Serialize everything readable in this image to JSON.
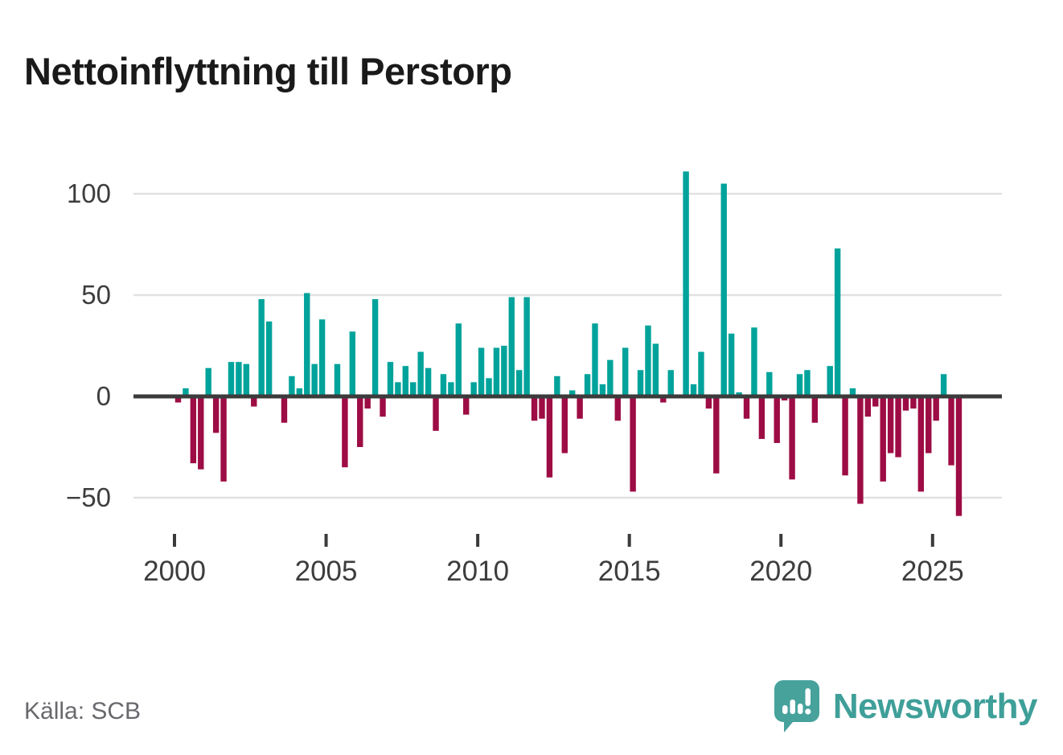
{
  "header": {
    "title": "Nettoinflyttning till Perstorp"
  },
  "footer": {
    "source": "Källa: SCB",
    "brand": "Newsworthy"
  },
  "colors": {
    "positive": "#00a39b",
    "negative": "#9d0c44",
    "brand_teal": "#47a29c",
    "axis_dark": "#3b3b3b",
    "gridline": "#e1e1e1",
    "tick_label": "#3d3d3d"
  },
  "chart_data": {
    "type": "bar",
    "title": "Nettoinflyttning till Perstorp",
    "source": "Källa: SCB",
    "frequency": "quarterly",
    "xlabel": "",
    "ylabel": "",
    "ylim": [
      -65,
      115
    ],
    "grid": true,
    "x_tick_labels": [
      "2000",
      "2005",
      "2010",
      "2015",
      "2020",
      "2025"
    ],
    "y_ticks": [
      {
        "label": "100",
        "value": 100
      },
      {
        "label": "50",
        "value": 50
      },
      {
        "label": "0",
        "value": 0
      },
      {
        "label": "−50",
        "value": -50
      }
    ],
    "categories": [
      "2000-Q1",
      "2000-Q2",
      "2000-Q3",
      "2000-Q4",
      "2001-Q1",
      "2001-Q2",
      "2001-Q3",
      "2001-Q4",
      "2002-Q1",
      "2002-Q2",
      "2002-Q3",
      "2002-Q4",
      "2003-Q1",
      "2003-Q2",
      "2003-Q3",
      "2003-Q4",
      "2004-Q1",
      "2004-Q2",
      "2004-Q3",
      "2004-Q4",
      "2005-Q1",
      "2005-Q2",
      "2005-Q3",
      "2005-Q4",
      "2006-Q1",
      "2006-Q2",
      "2006-Q3",
      "2006-Q4",
      "2007-Q1",
      "2007-Q2",
      "2007-Q3",
      "2007-Q4",
      "2008-Q1",
      "2008-Q2",
      "2008-Q3",
      "2008-Q4",
      "2009-Q1",
      "2009-Q2",
      "2009-Q3",
      "2009-Q4",
      "2010-Q1",
      "2010-Q2",
      "2010-Q3",
      "2010-Q4",
      "2011-Q1",
      "2011-Q2",
      "2011-Q3",
      "2011-Q4",
      "2012-Q1",
      "2012-Q2",
      "2012-Q3",
      "2012-Q4",
      "2013-Q1",
      "2013-Q2",
      "2013-Q3",
      "2013-Q4",
      "2014-Q1",
      "2014-Q2",
      "2014-Q3",
      "2014-Q4",
      "2015-Q1",
      "2015-Q2",
      "2015-Q3",
      "2015-Q4",
      "2016-Q1",
      "2016-Q2",
      "2016-Q3",
      "2016-Q4",
      "2017-Q1",
      "2017-Q2",
      "2017-Q3",
      "2017-Q4",
      "2018-Q1",
      "2018-Q2",
      "2018-Q3",
      "2018-Q4",
      "2019-Q1",
      "2019-Q2",
      "2019-Q3",
      "2019-Q4",
      "2020-Q1",
      "2020-Q2",
      "2020-Q3",
      "2020-Q4",
      "2021-Q1",
      "2021-Q2",
      "2021-Q3",
      "2021-Q4",
      "2022-Q1",
      "2022-Q2",
      "2022-Q3",
      "2022-Q4",
      "2023-Q1",
      "2023-Q2",
      "2023-Q3",
      "2023-Q4",
      "2024-Q1",
      "2024-Q2",
      "2024-Q3",
      "2024-Q4",
      "2025-Q1",
      "2025-Q2",
      "2025-Q3",
      "2025-Q4"
    ],
    "series": [
      {
        "name": "Nettoinflyttning",
        "values": [
          -3,
          4,
          -33,
          -36,
          14,
          -18,
          -42,
          17,
          17,
          16,
          -5,
          48,
          37,
          1,
          -13,
          10,
          4,
          51,
          16,
          38,
          1,
          16,
          -35,
          32,
          -25,
          -6,
          48,
          -10,
          17,
          7,
          15,
          7,
          22,
          14,
          -17,
          11,
          7,
          36,
          -9,
          7,
          24,
          9,
          24,
          25,
          49,
          13,
          49,
          -12,
          -11,
          -40,
          10,
          -28,
          3,
          -11,
          11,
          36,
          6,
          18,
          -12,
          24,
          -47,
          13,
          35,
          26,
          -3,
          13,
          0,
          111,
          6,
          22,
          -6,
          -38,
          105,
          31,
          2,
          -11,
          34,
          -21,
          12,
          -23,
          -2,
          -41,
          11,
          13,
          -13,
          1,
          15,
          73,
          -39,
          4,
          -53,
          -10,
          -5,
          -42,
          -28,
          -30,
          -7,
          -6,
          -47,
          -28,
          -12,
          11,
          -34,
          -59
        ]
      }
    ],
    "legend": false
  }
}
